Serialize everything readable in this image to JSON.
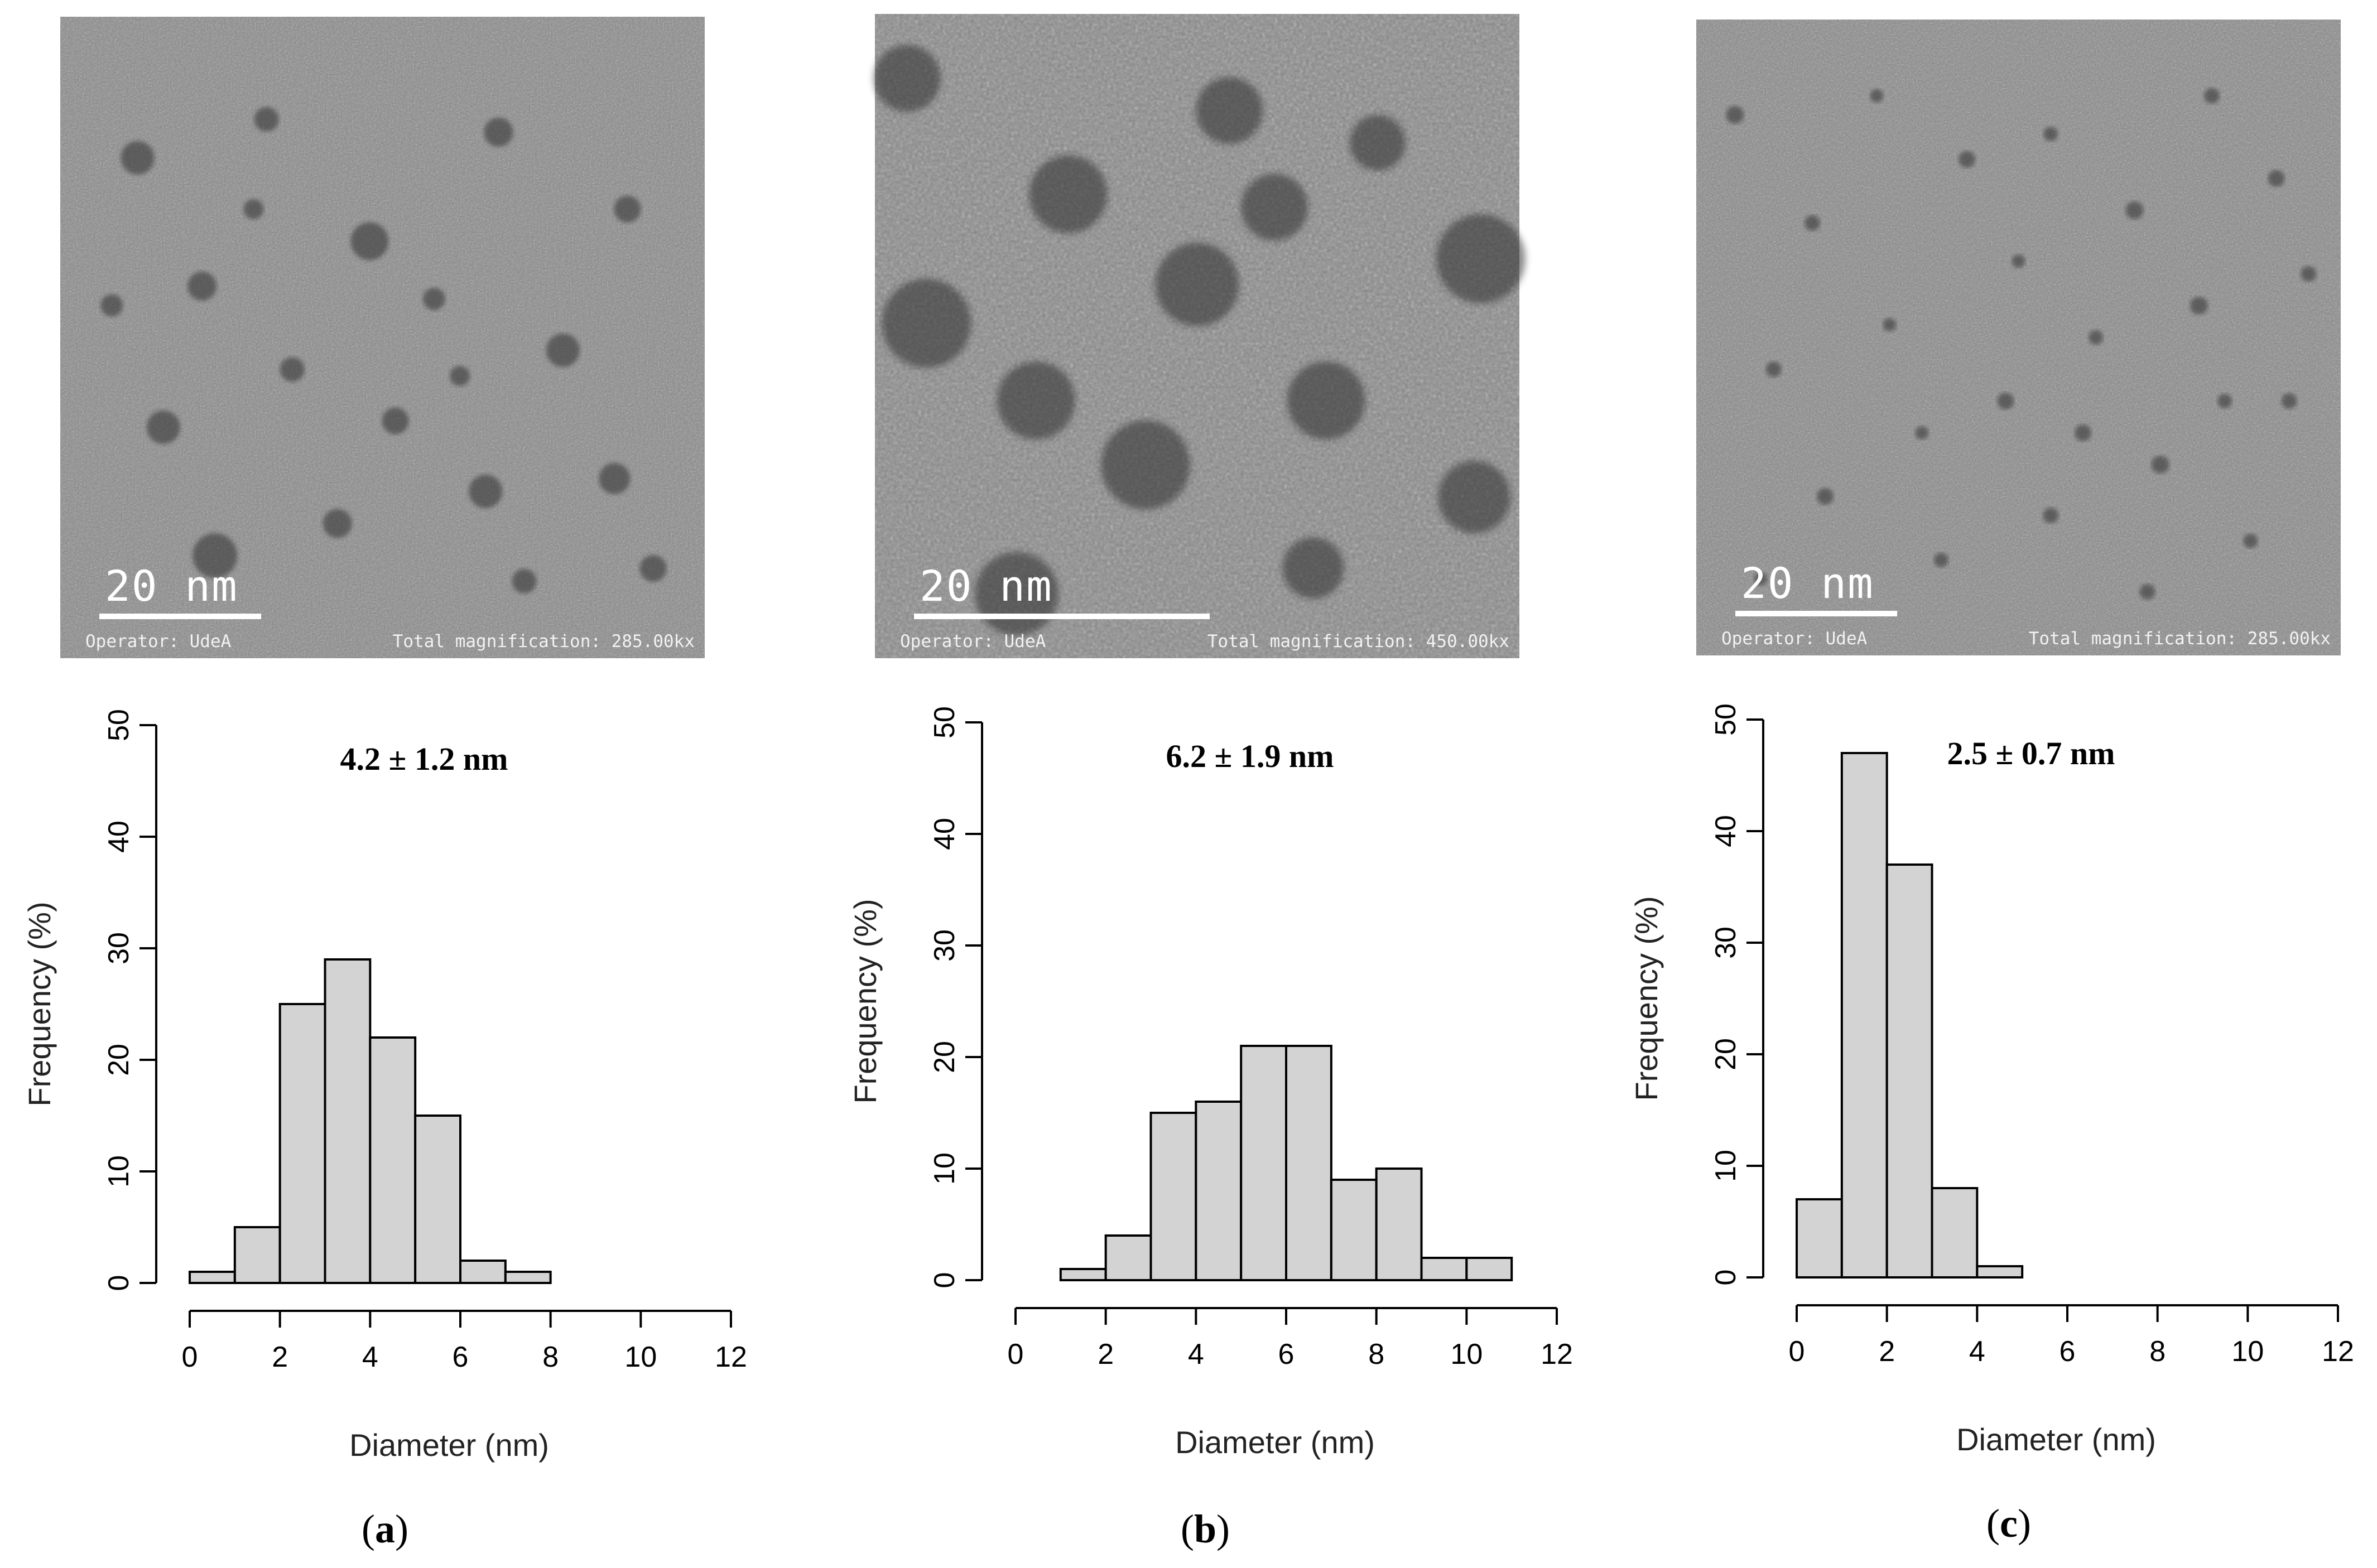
{
  "panels": [
    {
      "id": "a",
      "tem": {
        "scale_label": "20 nm",
        "operator": "Operator: UdeA",
        "magnification": "Total magnification: 285.00kx"
      },
      "caption": "a",
      "chart_data": {
        "type": "bar",
        "annotation": "4.2 ± 1.2 nm",
        "xlabel": "Diameter (nm)",
        "ylabel": "Frequency (%)",
        "bin_edges": [
          0,
          1,
          2,
          3,
          4,
          5,
          6,
          7,
          8
        ],
        "values": [
          1,
          5,
          25,
          29,
          22,
          15,
          2,
          1
        ],
        "xlim": [
          0,
          12
        ],
        "ylim": [
          0,
          50
        ],
        "xticks": [
          "0",
          "2",
          "4",
          "6",
          "8",
          "10",
          "12"
        ],
        "yticks": [
          "0",
          "10",
          "20",
          "30",
          "40",
          "50"
        ],
        "bar_color": "#d3d3d3"
      }
    },
    {
      "id": "b",
      "tem": {
        "scale_label": "20 nm",
        "operator": "Operator: UdeA",
        "magnification": "Total magnification: 450.00kx"
      },
      "caption": "b",
      "chart_data": {
        "type": "bar",
        "annotation": "6.2 ± 1.9 nm",
        "xlabel": "Diameter (nm)",
        "ylabel": "Frequency (%)",
        "bin_edges": [
          0,
          1,
          2,
          3,
          4,
          5,
          6,
          7,
          8,
          9,
          10,
          11
        ],
        "values": [
          0,
          1,
          4,
          15,
          16,
          21,
          21,
          9,
          10,
          2,
          2
        ],
        "xlim": [
          0,
          12
        ],
        "ylim": [
          0,
          50
        ],
        "xticks": [
          "0",
          "2",
          "4",
          "6",
          "8",
          "10",
          "12"
        ],
        "yticks": [
          "0",
          "10",
          "20",
          "30",
          "40",
          "50"
        ],
        "bar_color": "#d3d3d3"
      }
    },
    {
      "id": "c",
      "tem": {
        "scale_label": "20 nm",
        "operator": "Operator: UdeA",
        "magnification": "Total magnification: 285.00kx"
      },
      "caption": "c",
      "chart_data": {
        "type": "bar",
        "annotation": "2.5 ± 0.7 nm",
        "xlabel": "Diameter (nm)",
        "ylabel": "Frequency (%)",
        "bin_edges": [
          0,
          1,
          2,
          3,
          4,
          5,
          6,
          7,
          8,
          9,
          10,
          11,
          12
        ],
        "values": [
          7,
          47,
          37,
          8,
          1,
          0,
          0,
          0,
          0,
          0,
          0,
          0
        ],
        "xlim": [
          0,
          12
        ],
        "ylim": [
          0,
          50
        ],
        "xticks": [
          "0",
          "2",
          "4",
          "6",
          "8",
          "10",
          "12"
        ],
        "yticks": [
          "0",
          "10",
          "20",
          "30",
          "40",
          "50"
        ],
        "bar_color": "#d3d3d3"
      }
    }
  ]
}
